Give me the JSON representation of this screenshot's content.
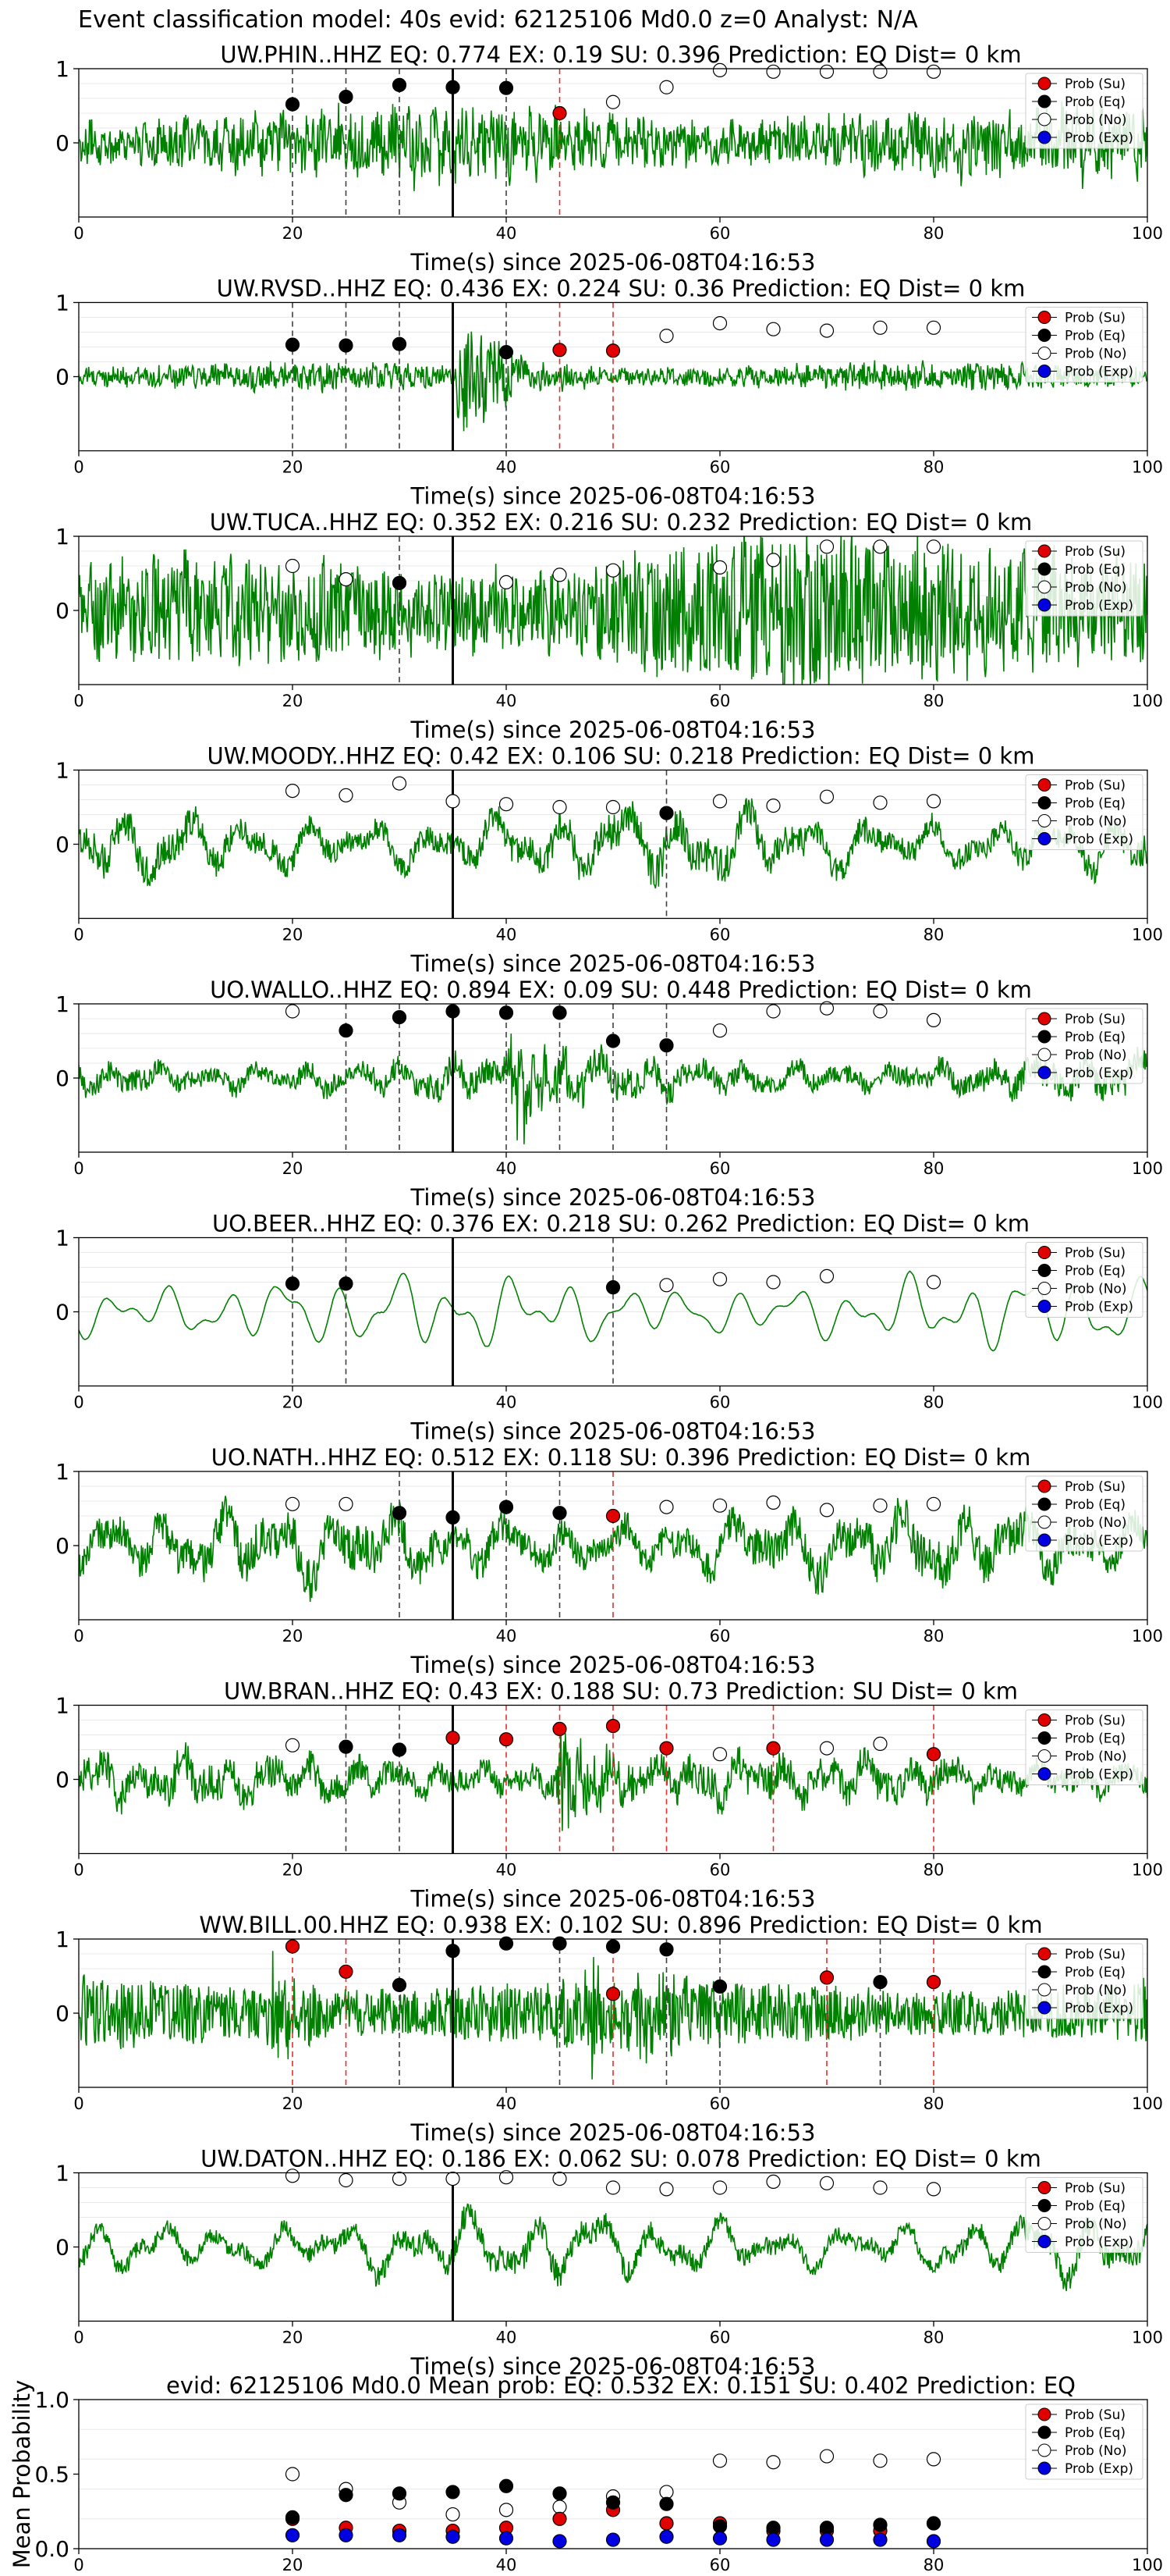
{
  "figure": {
    "suptitle": "Event classification model: 40s evid: 62125106 Md0.0 z=0 Analyst: N/A",
    "xlabel": "Time(s) since 2025-06-08T04:16:53"
  },
  "legend": {
    "entries": [
      {
        "label": "Prob (Su)",
        "face": "#e00000",
        "edge": "#000000"
      },
      {
        "label": "Prob (Eq)",
        "face": "#000000",
        "edge": "#000000"
      },
      {
        "label": "Prob (No)",
        "face": "#ffffff",
        "edge": "#000000"
      },
      {
        "label": "Prob (Exp)",
        "face": "#0000e0",
        "edge": "#000000"
      }
    ],
    "placement": "right"
  },
  "colors": {
    "waveform": "#008000",
    "eq_line": "#404040",
    "su_line": "#e03030",
    "origin_line": "#000000"
  },
  "chart_data": [
    {
      "type": "line",
      "title": "UW.PHIN..HHZ   EQ: 0.774  EX: 0.19  SU: 0.396   Prediction: EQ    Dist= 0 km",
      "xlim": [
        0,
        100
      ],
      "ylim": [
        -1,
        1
      ],
      "xticks": [
        "0",
        "20",
        "40",
        "60",
        "80",
        "100"
      ],
      "yticks": [
        "0",
        "1"
      ],
      "origin_time": 35,
      "eq_lines": [
        20,
        25,
        30,
        40
      ],
      "su_lines": [
        45
      ],
      "style": {
        "amp": 0.38,
        "noise": 0.6,
        "freq": 2.5
      },
      "events": [
        {
          "t": 35,
          "a": 0.0
        }
      ],
      "probs": {
        "su": [
          [
            45,
            0.4
          ]
        ],
        "eq": [
          [
            20,
            0.52
          ],
          [
            25,
            0.62
          ],
          [
            30,
            0.78
          ],
          [
            35,
            0.75
          ],
          [
            40,
            0.74
          ]
        ],
        "no": [
          [
            50,
            0.55
          ],
          [
            55,
            0.75
          ],
          [
            60,
            0.98
          ],
          [
            65,
            0.96
          ],
          [
            70,
            0.96
          ],
          [
            75,
            0.96
          ],
          [
            80,
            0.96
          ]
        ],
        "exp": []
      }
    },
    {
      "type": "line",
      "title": "UW.RVSD..HHZ   EQ: 0.436  EX: 0.224  SU: 0.36   Prediction: EQ    Dist= 0 km",
      "xlim": [
        0,
        100
      ],
      "ylim": [
        -1,
        1
      ],
      "xticks": [
        "0",
        "20",
        "40",
        "60",
        "80",
        "100"
      ],
      "yticks": [
        "0",
        "1"
      ],
      "origin_time": 35,
      "eq_lines": [
        20,
        25,
        30,
        40
      ],
      "su_lines": [
        45,
        50
      ],
      "style": {
        "amp": 0.14,
        "noise": 0.6,
        "freq": 3.0
      },
      "events": [
        {
          "t": 36,
          "a": 0.9
        }
      ],
      "probs": {
        "su": [
          [
            45,
            0.36
          ],
          [
            50,
            0.35
          ]
        ],
        "eq": [
          [
            20,
            0.43
          ],
          [
            25,
            0.42
          ],
          [
            30,
            0.44
          ],
          [
            40,
            0.33
          ]
        ],
        "no": [
          [
            55,
            0.55
          ],
          [
            60,
            0.72
          ],
          [
            65,
            0.64
          ],
          [
            70,
            0.62
          ],
          [
            75,
            0.66
          ],
          [
            80,
            0.66
          ]
        ],
        "exp": []
      }
    },
    {
      "type": "line",
      "title": "UW.TUCA..HHZ   EQ: 0.352  EX: 0.216  SU: 0.232   Prediction: EQ    Dist= 0 km",
      "xlim": [
        0,
        100
      ],
      "ylim": [
        -1,
        1
      ],
      "xticks": [
        "0",
        "20",
        "40",
        "60",
        "80",
        "100"
      ],
      "yticks": [
        "0",
        "1"
      ],
      "origin_time": 35,
      "eq_lines": [
        30
      ],
      "su_lines": [],
      "style": {
        "amp": 0.45,
        "noise": 0.7,
        "freq": 2.2,
        "grow": 0.9
      },
      "events": [],
      "probs": {
        "su": [],
        "eq": [
          [
            30,
            0.37
          ]
        ],
        "no": [
          [
            20,
            0.6
          ],
          [
            25,
            0.42
          ],
          [
            40,
            0.38
          ],
          [
            45,
            0.48
          ],
          [
            50,
            0.54
          ],
          [
            60,
            0.58
          ],
          [
            65,
            0.68
          ],
          [
            70,
            0.86
          ],
          [
            75,
            0.86
          ],
          [
            80,
            0.86
          ]
        ],
        "exp": []
      }
    },
    {
      "type": "line",
      "title": "UW.MOODY..HHZ   EQ: 0.42  EX: 0.106  SU: 0.218   Prediction: EQ    Dist= 0 km",
      "xlim": [
        0,
        100
      ],
      "ylim": [
        -1,
        1
      ],
      "xticks": [
        "0",
        "20",
        "40",
        "60",
        "80",
        "100"
      ],
      "yticks": [
        "0",
        "1"
      ],
      "origin_time": 35,
      "eq_lines": [
        55
      ],
      "su_lines": [],
      "style": {
        "amp": 0.5,
        "noise": 0.25,
        "freq": 0.55
      },
      "events": [],
      "probs": {
        "su": [],
        "eq": [
          [
            55,
            0.42
          ]
        ],
        "no": [
          [
            20,
            0.72
          ],
          [
            25,
            0.66
          ],
          [
            30,
            0.82
          ],
          [
            35,
            0.58
          ],
          [
            40,
            0.54
          ],
          [
            45,
            0.5
          ],
          [
            50,
            0.5
          ],
          [
            60,
            0.58
          ],
          [
            65,
            0.52
          ],
          [
            70,
            0.64
          ],
          [
            75,
            0.56
          ],
          [
            80,
            0.58
          ]
        ],
        "exp": []
      }
    },
    {
      "type": "line",
      "title": "UO.WALLO..HHZ   EQ: 0.894  EX: 0.09  SU: 0.448   Prediction: EQ    Dist= 0 km",
      "xlim": [
        0,
        100
      ],
      "ylim": [
        -1,
        1
      ],
      "xticks": [
        "0",
        "20",
        "40",
        "60",
        "80",
        "100"
      ],
      "yticks": [
        "0",
        "1"
      ],
      "origin_time": 35,
      "eq_lines": [
        25,
        30,
        40,
        45,
        50,
        55
      ],
      "su_lines": [],
      "style": {
        "amp": 0.3,
        "noise": 0.35,
        "freq": 0.7
      },
      "events": [
        {
          "t": 41,
          "a": 0.7
        }
      ],
      "probs": {
        "su": [],
        "eq": [
          [
            25,
            0.64
          ],
          [
            30,
            0.82
          ],
          [
            35,
            0.9
          ],
          [
            40,
            0.88
          ],
          [
            45,
            0.88
          ],
          [
            50,
            0.5
          ],
          [
            55,
            0.44
          ]
        ],
        "no": [
          [
            20,
            0.9
          ],
          [
            60,
            0.64
          ],
          [
            65,
            0.9
          ],
          [
            70,
            0.94
          ],
          [
            75,
            0.9
          ],
          [
            80,
            0.78
          ]
        ],
        "exp": []
      }
    },
    {
      "type": "line",
      "title": "UO.BEER..HHZ   EQ: 0.376  EX: 0.218  SU: 0.262   Prediction: EQ    Dist= 0 km",
      "xlim": [
        0,
        100
      ],
      "ylim": [
        -1,
        1
      ],
      "xticks": [
        "0",
        "20",
        "40",
        "60",
        "80",
        "100"
      ],
      "yticks": [
        "0",
        "1"
      ],
      "origin_time": 35,
      "eq_lines": [
        20,
        25,
        50
      ],
      "su_lines": [],
      "style": {
        "amp": 0.45,
        "noise": 0.05,
        "freq": 0.6,
        "smooth": true
      },
      "events": [],
      "probs": {
        "su": [],
        "eq": [
          [
            20,
            0.38
          ],
          [
            25,
            0.38
          ],
          [
            50,
            0.33
          ]
        ],
        "no": [
          [
            55,
            0.36
          ],
          [
            60,
            0.44
          ],
          [
            65,
            0.4
          ],
          [
            70,
            0.48
          ],
          [
            80,
            0.4
          ]
        ],
        "exp": []
      }
    },
    {
      "type": "line",
      "title": "UO.NATH..HHZ   EQ: 0.512  EX: 0.118  SU: 0.396   Prediction: EQ    Dist= 0 km",
      "xlim": [
        0,
        100
      ],
      "ylim": [
        -1,
        1
      ],
      "xticks": [
        "0",
        "20",
        "40",
        "60",
        "80",
        "100"
      ],
      "yticks": [
        "0",
        "1"
      ],
      "origin_time": 35,
      "eq_lines": [
        30,
        40,
        45
      ],
      "su_lines": [
        50
      ],
      "style": {
        "amp": 0.5,
        "noise": 0.3,
        "freq": 0.6
      },
      "events": [],
      "probs": {
        "su": [
          [
            50,
            0.4
          ]
        ],
        "eq": [
          [
            30,
            0.44
          ],
          [
            35,
            0.38
          ],
          [
            40,
            0.52
          ],
          [
            45,
            0.44
          ]
        ],
        "no": [
          [
            20,
            0.56
          ],
          [
            25,
            0.56
          ],
          [
            55,
            0.52
          ],
          [
            60,
            0.54
          ],
          [
            65,
            0.58
          ],
          [
            70,
            0.48
          ],
          [
            75,
            0.54
          ],
          [
            80,
            0.56
          ]
        ],
        "exp": []
      }
    },
    {
      "type": "line",
      "title": "UW.BRAN..HHZ   EQ: 0.43  EX: 0.188  SU: 0.73   Prediction: SU    Dist= 0 km",
      "xlim": [
        0,
        100
      ],
      "ylim": [
        -1,
        1
      ],
      "xticks": [
        "0",
        "20",
        "40",
        "60",
        "80",
        "100"
      ],
      "yticks": [
        "0",
        "1"
      ],
      "origin_time": 35,
      "eq_lines": [
        25,
        30
      ],
      "su_lines": [
        40,
        45,
        50,
        55,
        65,
        80
      ],
      "style": {
        "amp": 0.35,
        "noise": 0.35,
        "freq": 0.8
      },
      "events": [
        {
          "t": 45,
          "a": 0.8
        }
      ],
      "probs": {
        "su": [
          [
            35,
            0.56
          ],
          [
            40,
            0.54
          ],
          [
            45,
            0.68
          ],
          [
            50,
            0.72
          ],
          [
            55,
            0.42
          ],
          [
            65,
            0.42
          ],
          [
            80,
            0.34
          ]
        ],
        "eq": [
          [
            25,
            0.44
          ],
          [
            30,
            0.4
          ]
        ],
        "no": [
          [
            20,
            0.46
          ],
          [
            60,
            0.34
          ],
          [
            70,
            0.42
          ],
          [
            75,
            0.48
          ]
        ],
        "exp": []
      }
    },
    {
      "type": "line",
      "title": "WW.BILL.00.HHZ   EQ: 0.938  EX: 0.102  SU: 0.896   Prediction: EQ    Dist= 0 km",
      "xlim": [
        0,
        100
      ],
      "ylim": [
        -1,
        1
      ],
      "xticks": [
        "0",
        "20",
        "40",
        "60",
        "80",
        "100"
      ],
      "yticks": [
        "0",
        "1"
      ],
      "origin_time": 35,
      "eq_lines": [
        30,
        45,
        55,
        60,
        75
      ],
      "su_lines": [
        20,
        25,
        50,
        70,
        80
      ],
      "style": {
        "amp": 0.3,
        "noise": 0.8,
        "freq": 3.0
      },
      "events": [
        {
          "t": 18,
          "a": 0.65
        },
        {
          "t": 48,
          "a": 0.75
        }
      ],
      "probs": {
        "su": [
          [
            20,
            0.9
          ],
          [
            25,
            0.56
          ],
          [
            50,
            0.26
          ],
          [
            70,
            0.48
          ],
          [
            80,
            0.42
          ]
        ],
        "eq": [
          [
            30,
            0.38
          ],
          [
            35,
            0.84
          ],
          [
            40,
            0.94
          ],
          [
            45,
            0.94
          ],
          [
            50,
            0.9
          ],
          [
            55,
            0.86
          ],
          [
            60,
            0.36
          ],
          [
            75,
            0.42
          ]
        ],
        "no": [],
        "exp": []
      }
    },
    {
      "type": "line",
      "title": "UW.DATON..HHZ   EQ: 0.186  EX: 0.062  SU: 0.078   Prediction: EQ    Dist= 0 km",
      "xlim": [
        0,
        100
      ],
      "ylim": [
        -1,
        1
      ],
      "xticks": [
        "0",
        "20",
        "40",
        "60",
        "80",
        "100"
      ],
      "yticks": [
        "0",
        "1"
      ],
      "origin_time": 35,
      "eq_lines": [],
      "su_lines": [],
      "style": {
        "amp": 0.45,
        "noise": 0.2,
        "freq": 0.55
      },
      "events": [],
      "probs": {
        "su": [],
        "eq": [],
        "no": [
          [
            20,
            0.96
          ],
          [
            25,
            0.9
          ],
          [
            30,
            0.92
          ],
          [
            35,
            0.92
          ],
          [
            40,
            0.94
          ],
          [
            45,
            0.92
          ],
          [
            50,
            0.8
          ],
          [
            55,
            0.78
          ],
          [
            60,
            0.8
          ],
          [
            65,
            0.88
          ],
          [
            70,
            0.86
          ],
          [
            75,
            0.8
          ],
          [
            80,
            0.78
          ]
        ],
        "exp": []
      }
    },
    {
      "type": "scatter",
      "title": "evid: 62125106   Md0.0   Mean prob:   EQ: 0.532  EX: 0.151  SU: 0.402   Prediction: EQ",
      "ylabel": "Mean Probability",
      "xlim": [
        0,
        100
      ],
      "ylim": [
        0,
        1
      ],
      "xticks": [
        "0",
        "20",
        "40",
        "60",
        "80",
        "100"
      ],
      "yticks": [
        "0.0",
        "0.5",
        "1.0"
      ],
      "probs": {
        "su": [
          [
            20,
            0.2
          ],
          [
            25,
            0.14
          ],
          [
            30,
            0.12
          ],
          [
            35,
            0.12
          ],
          [
            40,
            0.14
          ],
          [
            45,
            0.2
          ],
          [
            50,
            0.26
          ],
          [
            55,
            0.17
          ],
          [
            60,
            0.17
          ],
          [
            65,
            0.12
          ],
          [
            70,
            0.12
          ],
          [
            75,
            0.12
          ],
          [
            80,
            0.17
          ]
        ],
        "eq": [
          [
            20,
            0.21
          ],
          [
            25,
            0.36
          ],
          [
            30,
            0.37
          ],
          [
            35,
            0.38
          ],
          [
            40,
            0.42
          ],
          [
            45,
            0.37
          ],
          [
            50,
            0.31
          ],
          [
            55,
            0.3
          ],
          [
            60,
            0.15
          ],
          [
            65,
            0.14
          ],
          [
            70,
            0.14
          ],
          [
            75,
            0.16
          ],
          [
            80,
            0.17
          ]
        ],
        "no": [
          [
            20,
            0.5
          ],
          [
            25,
            0.4
          ],
          [
            30,
            0.31
          ],
          [
            35,
            0.23
          ],
          [
            40,
            0.26
          ],
          [
            45,
            0.28
          ],
          [
            50,
            0.35
          ],
          [
            55,
            0.38
          ],
          [
            60,
            0.59
          ],
          [
            65,
            0.58
          ],
          [
            70,
            0.62
          ],
          [
            75,
            0.59
          ],
          [
            80,
            0.6
          ]
        ],
        "exp": [
          [
            20,
            0.09
          ],
          [
            25,
            0.09
          ],
          [
            30,
            0.09
          ],
          [
            35,
            0.08
          ],
          [
            40,
            0.07
          ],
          [
            45,
            0.05
          ],
          [
            50,
            0.06
          ],
          [
            55,
            0.08
          ],
          [
            60,
            0.07
          ],
          [
            65,
            0.06
          ],
          [
            70,
            0.06
          ],
          [
            75,
            0.06
          ],
          [
            80,
            0.05
          ]
        ]
      }
    }
  ]
}
